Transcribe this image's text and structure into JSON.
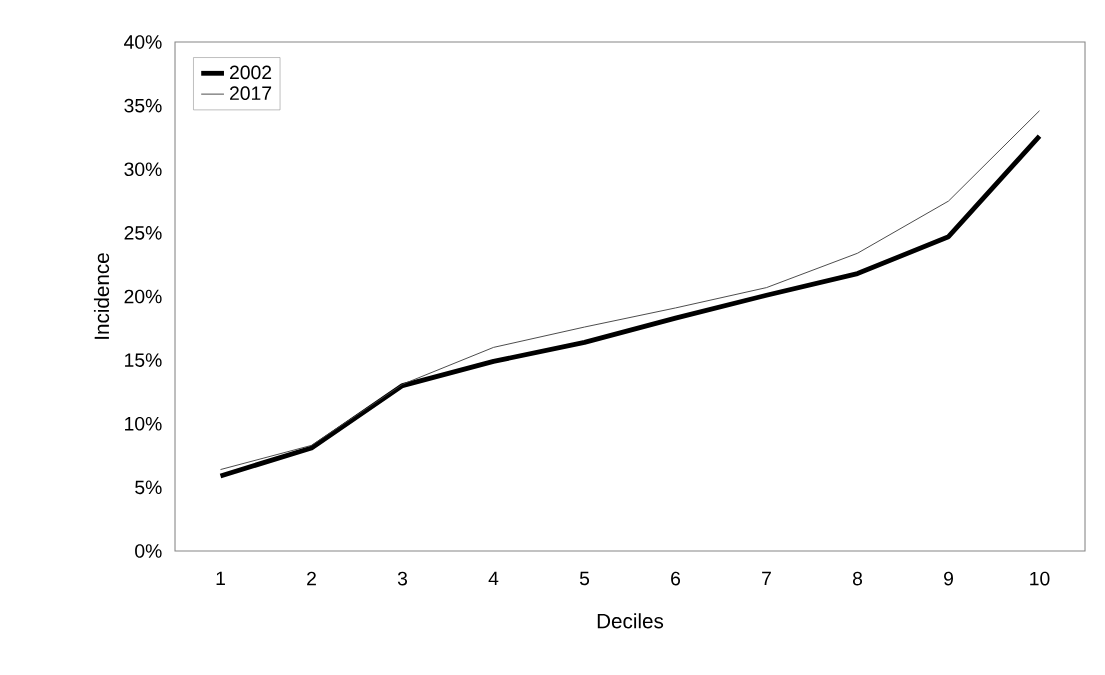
{
  "chart_data": {
    "type": "line",
    "xlabel": "Deciles",
    "ylabel": "Incidence",
    "categories": [
      "1",
      "2",
      "3",
      "4",
      "5",
      "6",
      "7",
      "8",
      "9",
      "10"
    ],
    "series": [
      {
        "name": "2002",
        "color": "#000000",
        "values": [
          5.9,
          8.1,
          13.0,
          14.9,
          16.4,
          18.3,
          20.1,
          21.8,
          24.7,
          32.6
        ]
      },
      {
        "name": "2017",
        "color": "#404040",
        "values": [
          6.4,
          8.3,
          13.1,
          16.0,
          17.6,
          19.1,
          20.7,
          23.4,
          27.5,
          34.6
        ]
      }
    ],
    "ylim": [
      0,
      40
    ],
    "yticks": [
      {
        "value": 0,
        "label": "0%"
      },
      {
        "value": 5,
        "label": "5%"
      },
      {
        "value": 10,
        "label": "10%"
      },
      {
        "value": 15,
        "label": "15%"
      },
      {
        "value": 20,
        "label": "20%"
      },
      {
        "value": 25,
        "label": "25%"
      },
      {
        "value": 30,
        "label": "30%"
      },
      {
        "value": 35,
        "label": "35%"
      },
      {
        "value": 40,
        "label": "40%"
      }
    ],
    "legend": "top left",
    "marker": "none",
    "line_style": "solid",
    "grid": false
  }
}
